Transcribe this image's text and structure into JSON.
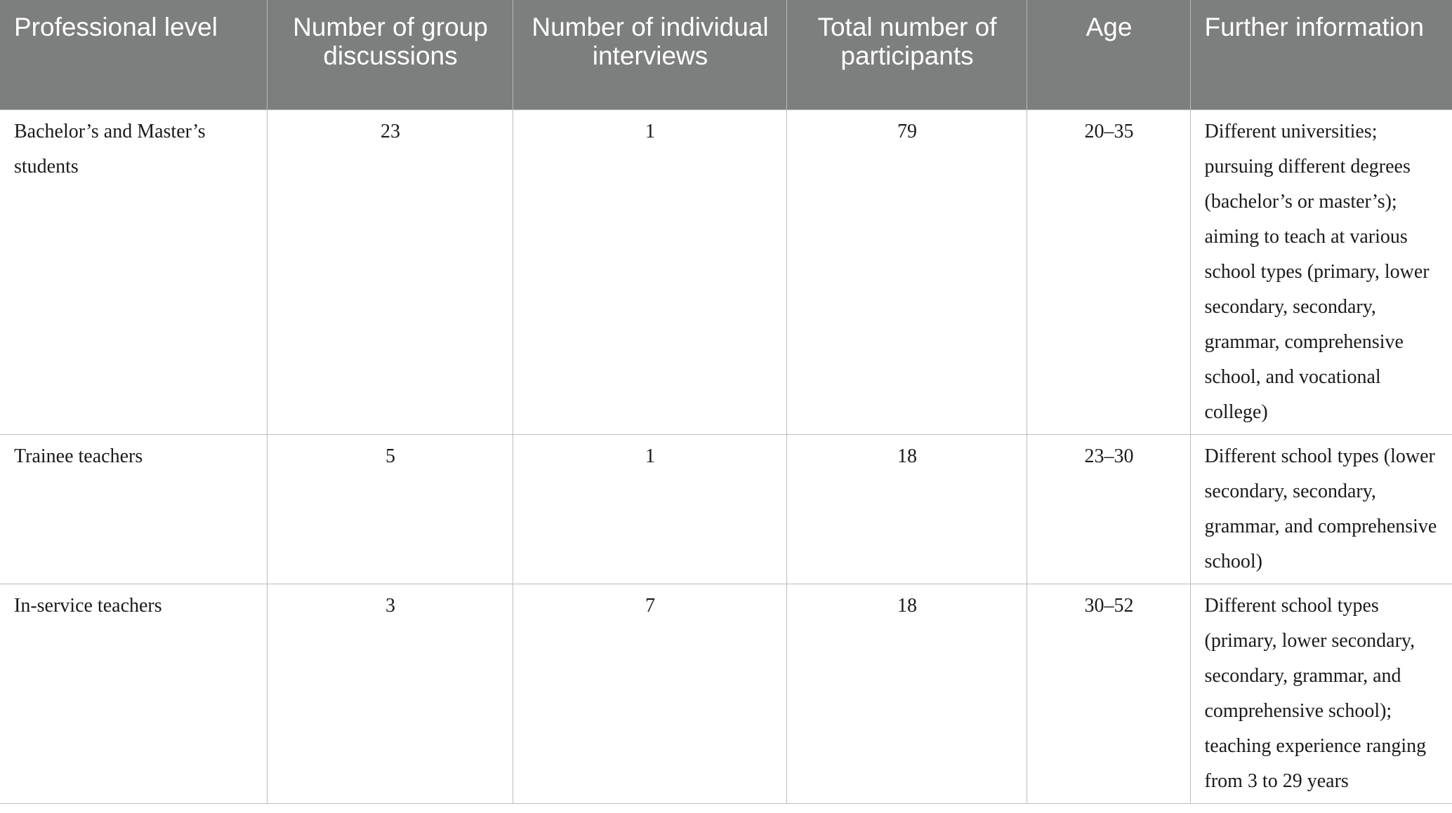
{
  "table": {
    "headers": [
      "Professional level",
      "Number of group discussions",
      "Number of individual interviews",
      "Total number of participants",
      "Age",
      "Further information"
    ],
    "rows": [
      {
        "level": "Bachelor’s and Master’s students",
        "group_discussions": "23",
        "individual_interviews": "1",
        "total_participants": "79",
        "age": "20–35",
        "further_information": "Different universities; pursuing different degrees (bachelor’s or master’s); aiming to teach at various school types (primary, lower secondary, secondary, grammar, comprehensive school, and vocational college)"
      },
      {
        "level": "Trainee teachers",
        "group_discussions": "5",
        "individual_interviews": "1",
        "total_participants": "18",
        "age": "23–30",
        "further_information": "Different school types (lower secondary, secondary, grammar, and comprehensive school)"
      },
      {
        "level": "In-service teachers",
        "group_discussions": "3",
        "individual_interviews": "7",
        "total_participants": "18",
        "age": "30–52",
        "further_information": "Different school types (primary, lower secondary, secondary, grammar, and comprehensive school); teaching experience ranging from 3 to 29 years"
      }
    ]
  },
  "colors": {
    "header_background": "#7d7f7e",
    "header_text": "#ffffff",
    "body_text": "#1a1a1a",
    "grid_line": "#bdbdbd"
  }
}
